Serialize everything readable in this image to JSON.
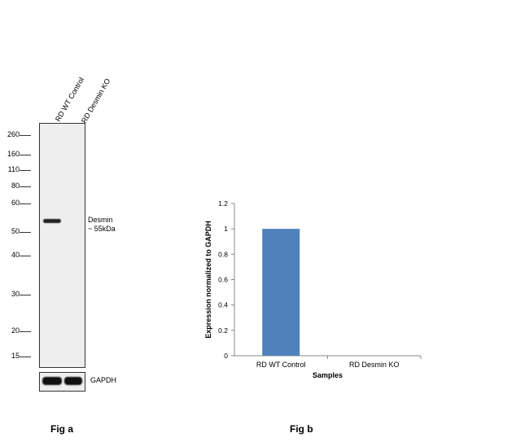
{
  "fig_a": {
    "lanes": [
      "RD WT Control",
      "RD Desmin KO"
    ],
    "markers": [
      "260",
      "160",
      "110",
      "80",
      "60",
      "50",
      "40",
      "30",
      "20",
      "15"
    ],
    "band_label_line1": "Desmin",
    "band_label_line2": "~ 55kDa",
    "loading_control": "GAPDH",
    "caption": "Fig a"
  },
  "fig_b": {
    "caption": "Fig b"
  },
  "chart_data": {
    "type": "bar",
    "categories": [
      "RD WT Control",
      "RD Desmin KO"
    ],
    "values": [
      1.0,
      0.0
    ],
    "xlabel": "Samples",
    "ylabel": "Expression  normalized to GAPDH",
    "ylim": [
      0,
      1.2
    ],
    "yticks": [
      "0",
      "0.2",
      "0.4",
      "0.6",
      "0.8",
      "1",
      "1.2"
    ],
    "bar_color": "#4f81bd",
    "grid": false,
    "legend": "none"
  }
}
